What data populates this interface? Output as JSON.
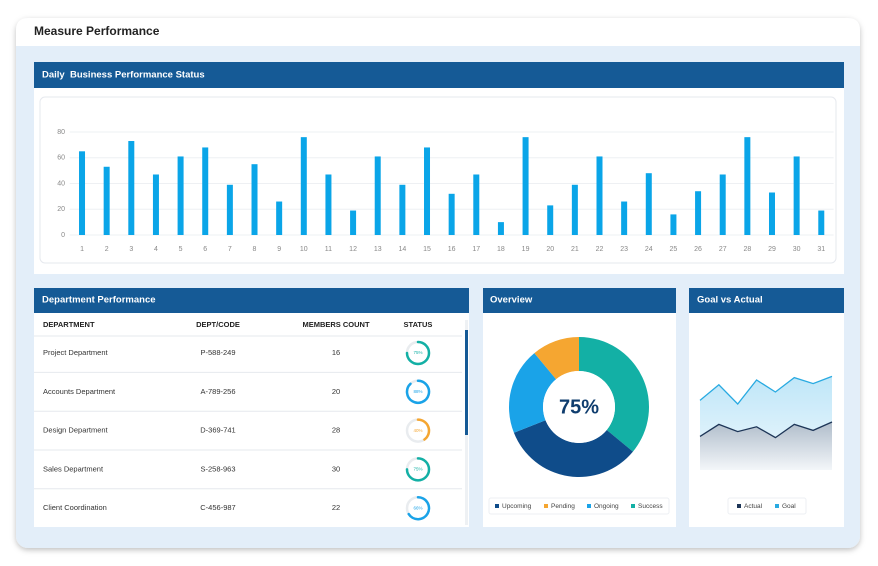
{
  "header": {
    "title": "Measure Performance"
  },
  "chart_data": [
    {
      "type": "bar",
      "title": "Daily  Business Performance Status",
      "categories": [
        "1",
        "2",
        "3",
        "4",
        "5",
        "6",
        "7",
        "8",
        "9",
        "10",
        "11",
        "12",
        "13",
        "14",
        "15",
        "16",
        "17",
        "18",
        "19",
        "20",
        "21",
        "22",
        "23",
        "24",
        "25",
        "26",
        "27",
        "28",
        "29",
        "30",
        "31"
      ],
      "values": [
        65,
        53,
        73,
        47,
        61,
        68,
        39,
        55,
        26,
        76,
        47,
        19,
        61,
        39,
        68,
        32,
        47,
        10,
        76,
        23,
        39,
        61,
        26,
        48,
        16,
        34,
        47,
        76,
        33,
        61,
        19
      ],
      "color": "#0aa5e8",
      "ylim": [
        0,
        80
      ],
      "yticks": [
        0,
        20,
        40,
        60,
        80
      ],
      "grid": true
    },
    {
      "type": "donut",
      "title": "Overview",
      "center_label": "75%",
      "series": [
        {
          "name": "Upcoming",
          "color": "#0f4c8a",
          "values": [
            33
          ]
        },
        {
          "name": "Pending",
          "color": "#f5a631",
          "values": [
            11
          ]
        },
        {
          "name": "Ongoing",
          "color": "#1aa3e8",
          "values": [
            20
          ]
        },
        {
          "name": "Success",
          "color": "#13b0a5",
          "values": [
            36
          ]
        }
      ]
    },
    {
      "type": "area",
      "title": "Goal vs Actual",
      "ylim": [
        0,
        100
      ],
      "series": [
        {
          "name": "Actual",
          "color": "#1d3557",
          "values": [
            28,
            38,
            32,
            36,
            27,
            38,
            33,
            40
          ]
        },
        {
          "name": "Goal",
          "color": "#29aae1",
          "values": [
            58,
            71,
            55,
            75,
            65,
            77,
            72,
            78
          ]
        }
      ]
    }
  ],
  "table": {
    "title": "Department Performance",
    "columns": [
      "DEPARTMENT",
      "DEPT/CODE",
      "MEMBERS COUNT",
      "STATUS"
    ],
    "rows": [
      {
        "department": "Project Department",
        "code": "P-588-249",
        "members": 16,
        "status": 75,
        "status_label": "75%",
        "color": "#13b0a5"
      },
      {
        "department": "Accounts Department",
        "code": "A-789-256",
        "members": 20,
        "status": 88,
        "status_label": "88%",
        "color": "#1aa3e8"
      },
      {
        "department": "Design Department",
        "code": "D-369-741",
        "members": 28,
        "status": 40,
        "status_label": "40%",
        "color": "#f5a631"
      },
      {
        "department": "Sales Department",
        "code": "S-258-963",
        "members": 30,
        "status": 75,
        "status_label": "75%",
        "color": "#13b0a5"
      },
      {
        "department": "Client Coordination",
        "code": "C-456-987",
        "members": 22,
        "status": 66,
        "status_label": "66%",
        "color": "#1aa3e8"
      }
    ]
  }
}
